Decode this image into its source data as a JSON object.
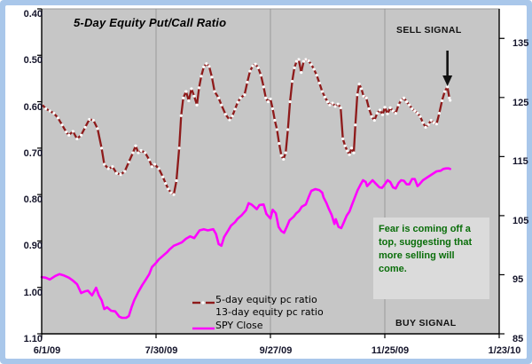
{
  "frame": {
    "border_color": "#A9C7EA",
    "inner_bg": "#ffffff"
  },
  "title": "5-Day Equity Put/Call Ratio",
  "annotations": {
    "sell_signal": "SELL SIGNAL",
    "buy_signal": "BUY SIGNAL",
    "note": "Fear is coming off a top, suggesting that more selling will come.",
    "note_color": "#0A6E0A",
    "note_bg": "#DBDBDB",
    "arrow": {
      "glyph": "down-arrow",
      "color": "#111111",
      "x_day": 149,
      "points_at_value": 0.568
    }
  },
  "chart_data": {
    "type": "line",
    "title": "5-Day Equity Put/Call Ratio",
    "plot_bg": "#C6C6C6",
    "gridline_color": "#999999",
    "x_axis": {
      "labels": [
        "6/1/09",
        "7/30/09",
        "9/27/09",
        "11/25/09",
        "1/23/10"
      ],
      "label_days": [
        0,
        42,
        84,
        126,
        168
      ],
      "gridline_days": [
        42,
        84,
        126
      ],
      "total_days": 168
    },
    "left_axis": {
      "min": 0.4,
      "max": 1.1,
      "inverted": true,
      "ticks": [
        "0.40",
        "0.50",
        "0.60",
        "0.70",
        "0.80",
        "0.90",
        "1.00",
        "1.10"
      ]
    },
    "right_axis": {
      "min": 85,
      "max": 140,
      "ticks": [
        "135",
        "125",
        "115",
        "105",
        "95",
        "85"
      ]
    },
    "series": [
      {
        "name": "5-day equity pc ratio",
        "axis": "left",
        "color": "#8E1A1A",
        "marker": "white-dot",
        "points": [
          [
            0,
            0.605
          ],
          [
            1.5,
            0.615
          ],
          [
            3,
            0.62
          ],
          [
            4.5,
            0.625
          ],
          [
            6,
            0.635
          ],
          [
            7.5,
            0.65
          ],
          [
            9,
            0.665
          ],
          [
            10,
            0.672
          ],
          [
            11.5,
            0.664
          ],
          [
            13,
            0.68
          ],
          [
            14.5,
            0.672
          ],
          [
            16,
            0.655
          ],
          [
            17.5,
            0.638
          ],
          [
            19,
            0.64
          ],
          [
            20.5,
            0.658
          ],
          [
            22,
            0.7
          ],
          [
            23,
            0.735
          ],
          [
            24.5,
            0.744
          ],
          [
            26,
            0.74
          ],
          [
            27.5,
            0.754
          ],
          [
            29,
            0.757
          ],
          [
            30.5,
            0.75
          ],
          [
            32,
            0.73
          ],
          [
            33.5,
            0.71
          ],
          [
            34.5,
            0.695
          ],
          [
            35.5,
            0.71
          ],
          [
            36.5,
            0.705
          ],
          [
            38,
            0.71
          ],
          [
            39.5,
            0.725
          ],
          [
            40.5,
            0.74
          ],
          [
            41.5,
            0.735
          ],
          [
            43,
            0.744
          ],
          [
            44.5,
            0.762
          ],
          [
            45.5,
            0.776
          ],
          [
            46.5,
            0.788
          ],
          [
            47.5,
            0.796
          ],
          [
            48.5,
            0.8
          ],
          [
            49.5,
            0.77
          ],
          [
            50.5,
            0.7
          ],
          [
            51.2,
            0.63
          ],
          [
            52,
            0.592
          ],
          [
            53,
            0.578
          ],
          [
            54,
            0.598
          ],
          [
            55,
            0.572
          ],
          [
            56,
            0.588
          ],
          [
            57,
            0.607
          ],
          [
            57.8,
            0.57
          ],
          [
            58.6,
            0.545
          ],
          [
            59.5,
            0.525
          ],
          [
            60.5,
            0.518
          ],
          [
            61.5,
            0.524
          ],
          [
            62.5,
            0.547
          ],
          [
            63.5,
            0.578
          ],
          [
            65,
            0.592
          ],
          [
            66,
            0.607
          ],
          [
            67.5,
            0.627
          ],
          [
            69,
            0.639
          ],
          [
            70,
            0.631
          ],
          [
            71,
            0.616
          ],
          [
            72,
            0.601
          ],
          [
            73,
            0.592
          ],
          [
            74.5,
            0.585
          ],
          [
            75.5,
            0.558
          ],
          [
            76.5,
            0.534
          ],
          [
            77.5,
            0.523
          ],
          [
            78.5,
            0.519
          ],
          [
            79.5,
            0.527
          ],
          [
            80.5,
            0.543
          ],
          [
            81.5,
            0.568
          ],
          [
            82.3,
            0.592
          ],
          [
            83.2,
            0.6
          ],
          [
            84,
            0.594
          ],
          [
            84.8,
            0.615
          ],
          [
            85.6,
            0.64
          ],
          [
            86.4,
            0.66
          ],
          [
            87.2,
            0.69
          ],
          [
            88,
            0.716
          ],
          [
            88.8,
            0.724
          ],
          [
            89.6,
            0.71
          ],
          [
            90.4,
            0.66
          ],
          [
            91.2,
            0.6
          ],
          [
            92,
            0.556
          ],
          [
            92.8,
            0.527
          ],
          [
            93.6,
            0.513
          ],
          [
            94.4,
            0.509
          ],
          [
            95.3,
            0.537
          ],
          [
            96.2,
            0.513
          ],
          [
            97,
            0.509
          ],
          [
            98,
            0.512
          ],
          [
            99,
            0.52
          ],
          [
            100,
            0.53
          ],
          [
            101,
            0.543
          ],
          [
            102,
            0.56
          ],
          [
            103,
            0.578
          ],
          [
            104,
            0.59
          ],
          [
            105,
            0.6
          ],
          [
            105.8,
            0.607
          ],
          [
            106.8,
            0.603
          ],
          [
            107.8,
            0.61
          ],
          [
            108.8,
            0.605
          ],
          [
            109.8,
            0.613
          ],
          [
            110.6,
            0.68
          ],
          [
            111.4,
            0.695
          ],
          [
            112.2,
            0.706
          ],
          [
            113,
            0.714
          ],
          [
            113.8,
            0.7
          ],
          [
            114.6,
            0.71
          ],
          [
            115.2,
            0.65
          ],
          [
            115.9,
            0.585
          ],
          [
            116.6,
            0.562
          ],
          [
            117.4,
            0.572
          ],
          [
            118.2,
            0.588
          ],
          [
            119.2,
            0.592
          ],
          [
            120.2,
            0.615
          ],
          [
            121.2,
            0.632
          ],
          [
            122.2,
            0.64
          ],
          [
            123.2,
            0.625
          ],
          [
            124.2,
            0.618
          ],
          [
            125.2,
            0.628
          ],
          [
            126,
            0.612
          ],
          [
            127,
            0.626
          ],
          [
            128,
            0.613
          ],
          [
            129,
            0.62
          ],
          [
            130,
            0.625
          ],
          [
            131,
            0.607
          ],
          [
            132,
            0.597
          ],
          [
            133,
            0.592
          ],
          [
            134,
            0.6
          ],
          [
            135,
            0.607
          ],
          [
            136,
            0.615
          ],
          [
            137,
            0.62
          ],
          [
            138,
            0.625
          ],
          [
            139,
            0.632
          ],
          [
            140,
            0.645
          ],
          [
            141,
            0.655
          ],
          [
            142,
            0.649
          ],
          [
            143,
            0.64
          ],
          [
            144,
            0.645
          ],
          [
            145,
            0.648
          ],
          [
            146,
            0.625
          ],
          [
            147,
            0.598
          ],
          [
            148,
            0.578
          ],
          [
            149,
            0.568
          ],
          [
            149.7,
            0.592
          ],
          [
            150,
            0.597
          ]
        ]
      },
      {
        "name": "13-day equity pc ratio",
        "axis": "left",
        "color": null,
        "marker": "none",
        "points": []
      },
      {
        "name": "SPY Close",
        "axis": "right",
        "color": "#FF00FF",
        "marker": "none",
        "points": [
          [
            0,
            94.6
          ],
          [
            1.5,
            94.5
          ],
          [
            3,
            94.2
          ],
          [
            5,
            94.8
          ],
          [
            6.5,
            95.1
          ],
          [
            8,
            94.9
          ],
          [
            10,
            94.5
          ],
          [
            11.5,
            94.0
          ],
          [
            13,
            93.4
          ],
          [
            14.5,
            91.9
          ],
          [
            16,
            92.2
          ],
          [
            17,
            92.3
          ],
          [
            18.5,
            91.5
          ],
          [
            20,
            92.8
          ],
          [
            21,
            91.5
          ],
          [
            22,
            90.7
          ],
          [
            23,
            89.2
          ],
          [
            24,
            89.5
          ],
          [
            25.5,
            88.9
          ],
          [
            27,
            88.8
          ],
          [
            28.5,
            87.9
          ],
          [
            29.5,
            87.7
          ],
          [
            31,
            87.7
          ],
          [
            32,
            88.0
          ],
          [
            33,
            89.5
          ],
          [
            34,
            90.7
          ],
          [
            35.5,
            92.1
          ],
          [
            37,
            93.3
          ],
          [
            38,
            94.0
          ],
          [
            39.5,
            95.1
          ],
          [
            40.5,
            96.3
          ],
          [
            42,
            97.0
          ],
          [
            43,
            97.6
          ],
          [
            44.5,
            98.2
          ],
          [
            46,
            98.8
          ],
          [
            47,
            99.3
          ],
          [
            48.5,
            99.9
          ],
          [
            50,
            100.2
          ],
          [
            51.5,
            100.5
          ],
          [
            53,
            101.1
          ],
          [
            54.5,
            101.5
          ],
          [
            56,
            101.2
          ],
          [
            58,
            102.5
          ],
          [
            59.5,
            102.7
          ],
          [
            61,
            102.5
          ],
          [
            63,
            102.7
          ],
          [
            64,
            101.9
          ],
          [
            65,
            100.2
          ],
          [
            66,
            99.9
          ],
          [
            67,
            101.4
          ],
          [
            68.5,
            102.5
          ],
          [
            69.5,
            103.3
          ],
          [
            71,
            103.9
          ],
          [
            72,
            104.5
          ],
          [
            73.5,
            105.1
          ],
          [
            75,
            105.9
          ],
          [
            76,
            107.1
          ],
          [
            77,
            106.9
          ],
          [
            78,
            106.5
          ],
          [
            79,
            106.1
          ],
          [
            80,
            106.8
          ],
          [
            81.5,
            106.9
          ],
          [
            82.5,
            105.3
          ],
          [
            84,
            104.5
          ],
          [
            84.8,
            106.0
          ],
          [
            86,
            105.4
          ],
          [
            87,
            103.1
          ],
          [
            88,
            102.4
          ],
          [
            89,
            102.1
          ],
          [
            90,
            103.1
          ],
          [
            91,
            104.2
          ],
          [
            92.5,
            104.8
          ],
          [
            93.5,
            105.4
          ],
          [
            94.5,
            105.8
          ],
          [
            95.5,
            106.5
          ],
          [
            97,
            106.9
          ],
          [
            98,
            108.1
          ],
          [
            99,
            109.2
          ],
          [
            100.5,
            109.5
          ],
          [
            102,
            109.3
          ],
          [
            103,
            108.9
          ],
          [
            103.5,
            108.1
          ],
          [
            104.5,
            107.2
          ],
          [
            105.5,
            106.1
          ],
          [
            106.5,
            105.1
          ],
          [
            107.5,
            103.6
          ],
          [
            108,
            104.4
          ],
          [
            109,
            103.1
          ],
          [
            110,
            102.9
          ],
          [
            111,
            103.9
          ],
          [
            112,
            105.0
          ],
          [
            113,
            105.7
          ],
          [
            114,
            106.9
          ],
          [
            115,
            108.1
          ],
          [
            116,
            109.3
          ],
          [
            117,
            110.2
          ],
          [
            118,
            111.0
          ],
          [
            119,
            110.7
          ],
          [
            119.5,
            110.0
          ],
          [
            120.5,
            110.5
          ],
          [
            121.5,
            111.0
          ],
          [
            122.5,
            110.5
          ],
          [
            124,
            109.8
          ],
          [
            125,
            109.7
          ],
          [
            126,
            110.3
          ],
          [
            127,
            111.0
          ],
          [
            128,
            110.7
          ],
          [
            129,
            109.8
          ],
          [
            130,
            109.6
          ],
          [
            131,
            110.5
          ],
          [
            132,
            111.0
          ],
          [
            133,
            110.9
          ],
          [
            134,
            110.3
          ],
          [
            135,
            110.3
          ],
          [
            136,
            111.2
          ],
          [
            137,
            111.2
          ],
          [
            138,
            110.0
          ],
          [
            138.5,
            110.2
          ],
          [
            140,
            111.0
          ],
          [
            141,
            111.3
          ],
          [
            142,
            111.6
          ],
          [
            143,
            111.9
          ],
          [
            144,
            112.2
          ],
          [
            145,
            112.5
          ],
          [
            146.5,
            112.6
          ],
          [
            147.5,
            112.9
          ],
          [
            148.5,
            113.0
          ],
          [
            149.5,
            113.0
          ],
          [
            150,
            112.9
          ]
        ]
      }
    ],
    "legend_position": "bottom-center-inside"
  }
}
